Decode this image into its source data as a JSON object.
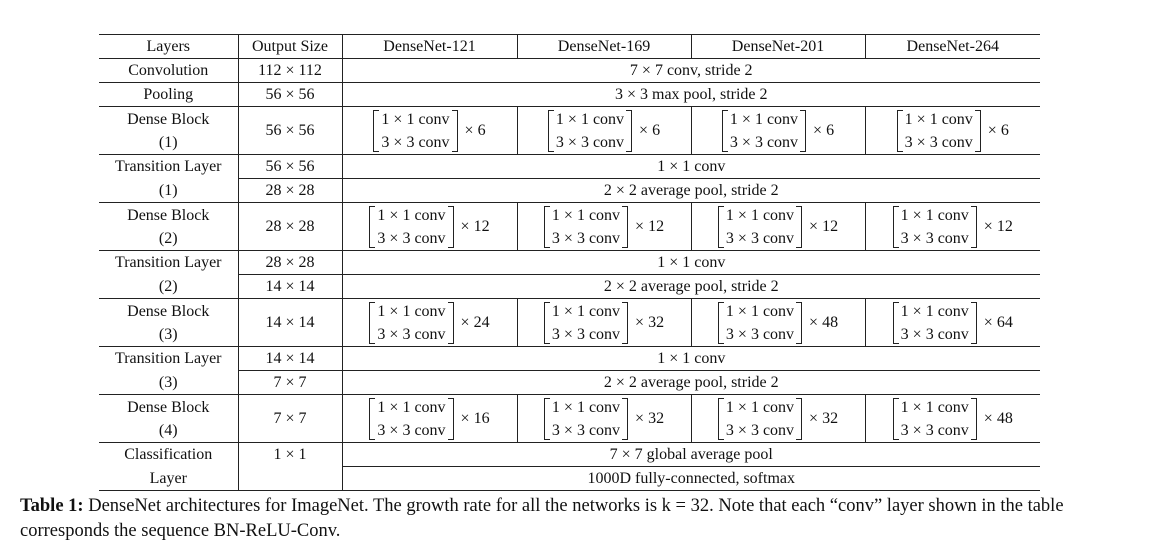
{
  "header": {
    "layers": "Layers",
    "output_size": "Output Size",
    "models": [
      "DenseNet-121",
      "DenseNet-169",
      "DenseNet-201",
      "DenseNet-264"
    ]
  },
  "rows": {
    "convolution": {
      "layer": "Convolution",
      "output": "112 × 112",
      "config": "7 × 7 conv, stride 2"
    },
    "pooling": {
      "layer": "Pooling",
      "output": "56 × 56",
      "config": "3 × 3 max pool, stride 2"
    },
    "dense1": {
      "layer_a": "Dense Block",
      "layer_b": "(1)",
      "output": "56 × 56",
      "conv_a": "1 × 1 conv",
      "conv_b": "3 × 3 conv",
      "mult": [
        "× 6",
        "× 6",
        "× 6",
        "× 6"
      ]
    },
    "trans1": {
      "layer_a": "Transition Layer",
      "layer_b": "(1)",
      "output_a": "56 × 56",
      "output_b": "28 × 28",
      "config_a": "1 × 1 conv",
      "config_b": "2 × 2 average pool, stride 2"
    },
    "dense2": {
      "layer_a": "Dense Block",
      "layer_b": "(2)",
      "output": "28 × 28",
      "conv_a": "1 × 1 conv",
      "conv_b": "3 × 3 conv",
      "mult": [
        "× 12",
        "× 12",
        "× 12",
        "× 12"
      ]
    },
    "trans2": {
      "layer_a": "Transition Layer",
      "layer_b": "(2)",
      "output_a": "28 × 28",
      "output_b": "14 × 14",
      "config_a": "1 × 1 conv",
      "config_b": "2 × 2 average pool, stride 2"
    },
    "dense3": {
      "layer_a": "Dense Block",
      "layer_b": "(3)",
      "output": "14 × 14",
      "conv_a": "1 × 1 conv",
      "conv_b": "3 × 3 conv",
      "mult": [
        "× 24",
        "× 32",
        "× 48",
        "× 64"
      ]
    },
    "trans3": {
      "layer_a": "Transition Layer",
      "layer_b": "(3)",
      "output_a": "14 × 14",
      "output_b": "7 × 7",
      "config_a": "1 × 1 conv",
      "config_b": "2 × 2 average pool, stride 2"
    },
    "dense4": {
      "layer_a": "Dense Block",
      "layer_b": "(4)",
      "output": "7 × 7",
      "conv_a": "1 × 1 conv",
      "conv_b": "3 × 3 conv",
      "mult": [
        "× 16",
        "× 32",
        "× 32",
        "× 48"
      ]
    },
    "classification": {
      "layer_a": "Classification",
      "layer_b": "Layer",
      "output": "1 × 1",
      "config_a": "7 × 7 global average pool",
      "config_b": "1000D fully-connected, softmax"
    }
  },
  "caption": {
    "label": "Table 1:",
    "text": " DenseNet architectures for ImageNet. The growth rate for all the networks is k = 32. Note that each “conv” layer shown in the table corresponds the sequence BN-ReLU-Conv."
  }
}
